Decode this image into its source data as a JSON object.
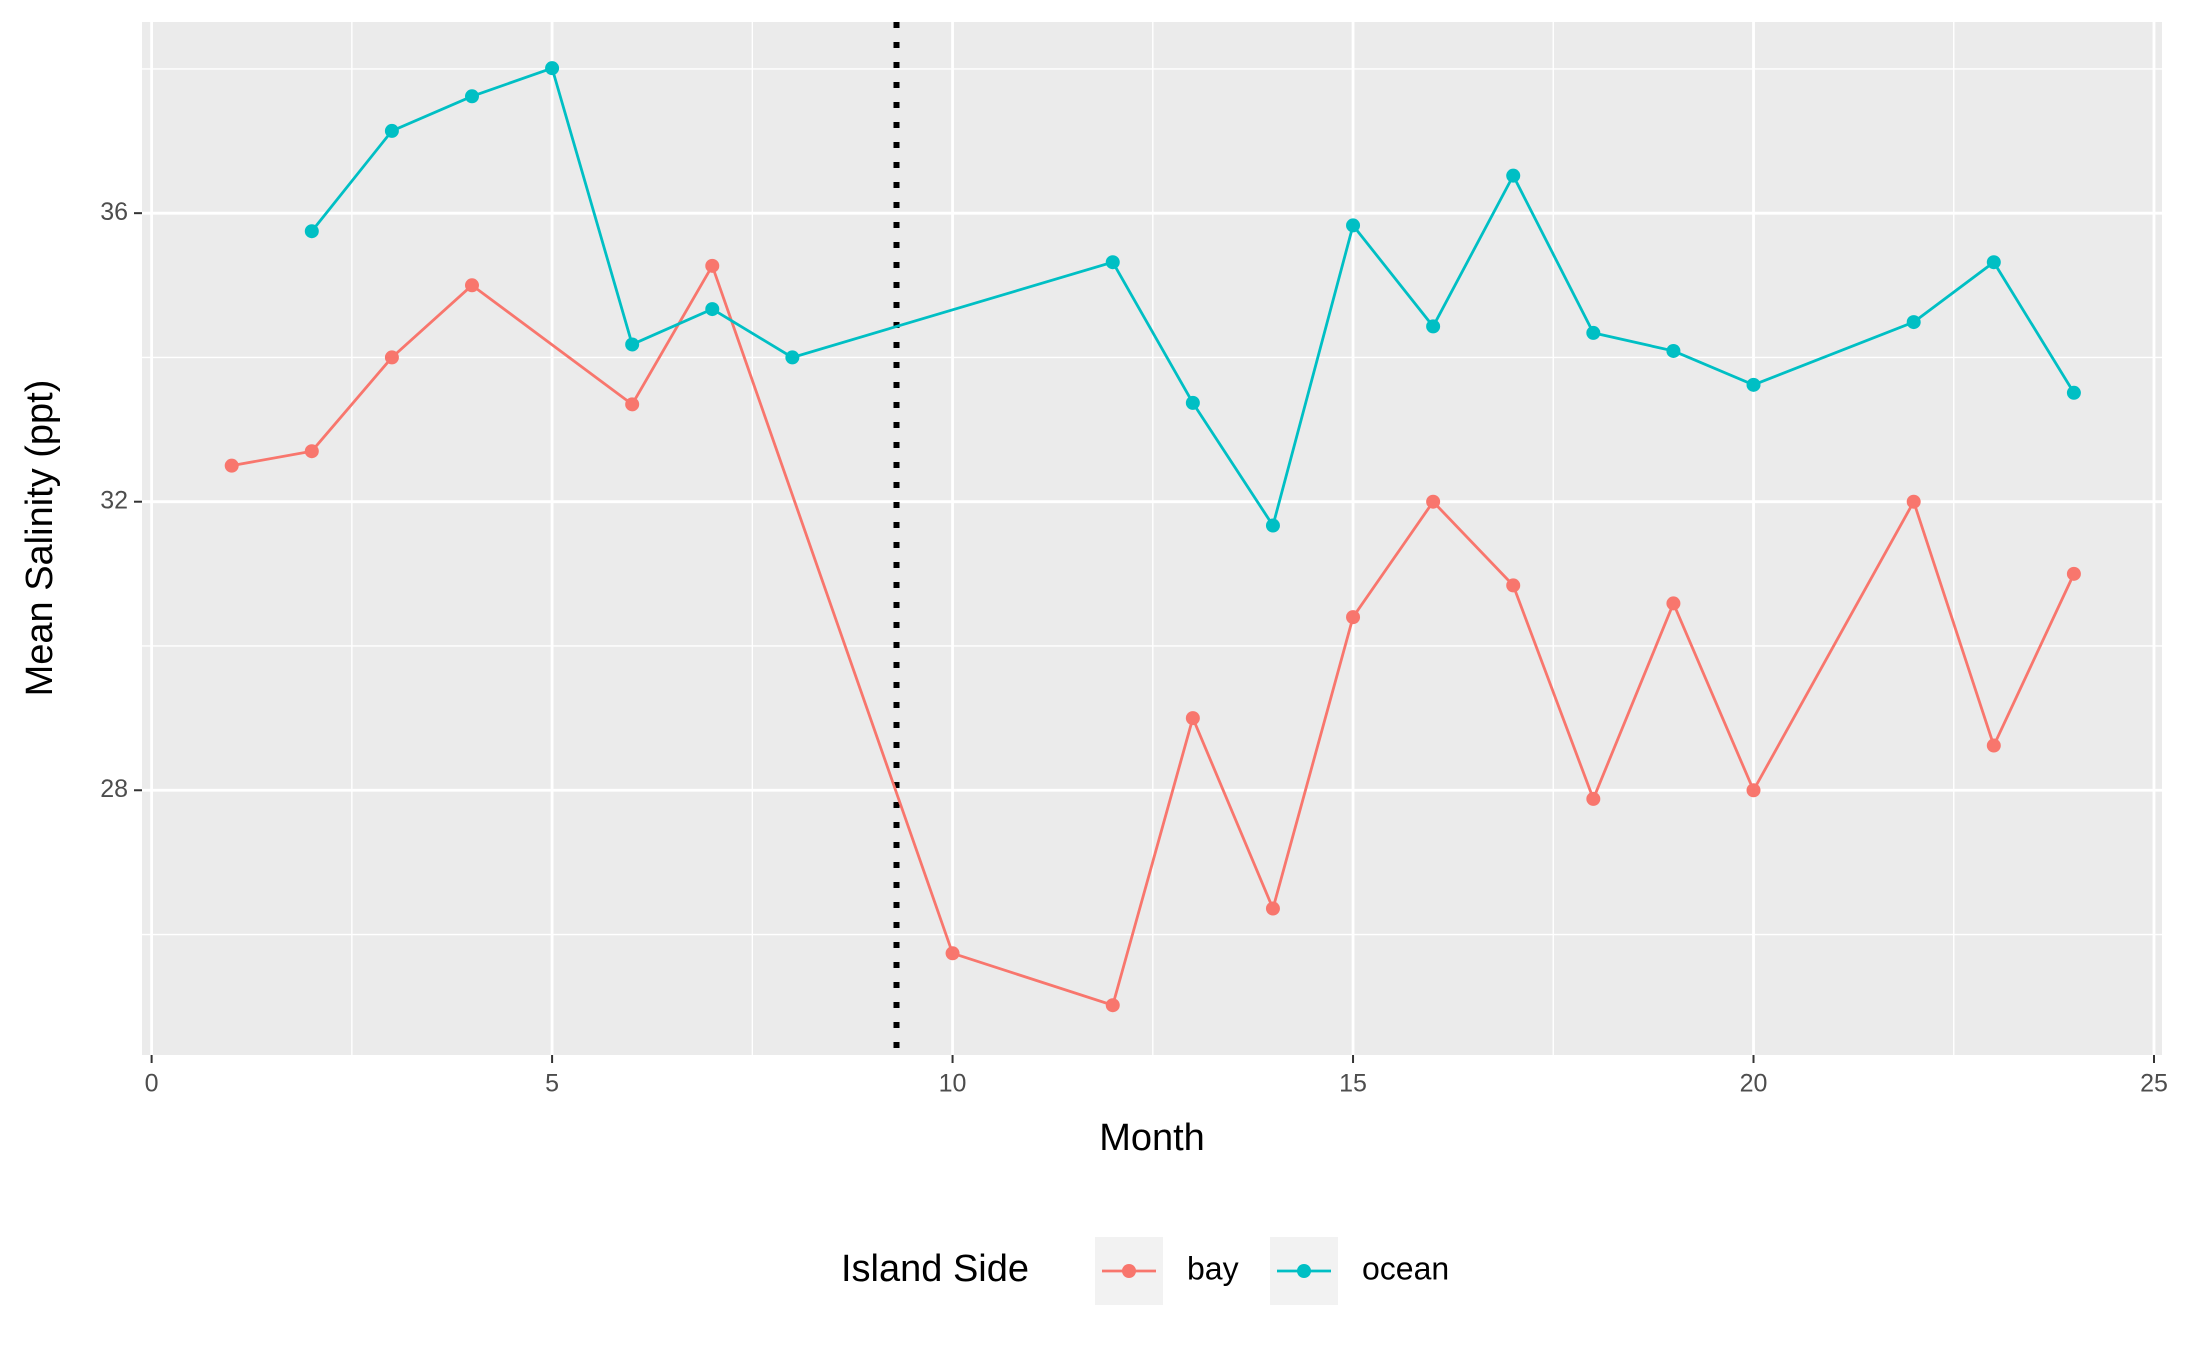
{
  "chart_data": {
    "type": "line",
    "x_label": "Month",
    "y_label": "Mean Salinity (ppt)",
    "legend_title": "Island Side",
    "legend_position": "bottom",
    "xlim": [
      -0.12,
      25.1
    ],
    "xticks": [
      0,
      5,
      10,
      15,
      20,
      25
    ],
    "x_minor_ticks": [
      2.5,
      7.5,
      12.5,
      17.5,
      22.5
    ],
    "ylim": [
      24.33,
      38.65
    ],
    "yticks": [
      28,
      32,
      36
    ],
    "y_minor_ticks": [
      26,
      30,
      34,
      38
    ],
    "grid": true,
    "background": "#ebebeb",
    "vline": 9.3,
    "series": [
      {
        "name": "bay",
        "color": "#F8766D",
        "x": [
          1,
          2,
          3,
          4,
          6,
          7,
          10,
          12,
          13,
          14,
          15,
          16,
          17,
          18,
          19,
          20,
          22,
          23,
          24
        ],
        "values": [
          32.5,
          32.7,
          34.0,
          35.0,
          33.35,
          35.27,
          25.74,
          25.02,
          29.0,
          26.36,
          30.4,
          32.0,
          30.84,
          27.88,
          30.59,
          28.0,
          32.0,
          28.62,
          31.0
        ]
      },
      {
        "name": "ocean",
        "color": "#00BFC4",
        "x": [
          2,
          3,
          4,
          5,
          6,
          7,
          8,
          12,
          13,
          14,
          15,
          16,
          17,
          18,
          19,
          20,
          22,
          23,
          24
        ],
        "values": [
          35.75,
          37.14,
          37.62,
          38.01,
          34.18,
          34.67,
          34.0,
          35.32,
          33.37,
          31.67,
          35.83,
          34.43,
          36.52,
          34.34,
          34.09,
          33.62,
          34.49,
          35.32,
          33.51
        ]
      }
    ]
  }
}
